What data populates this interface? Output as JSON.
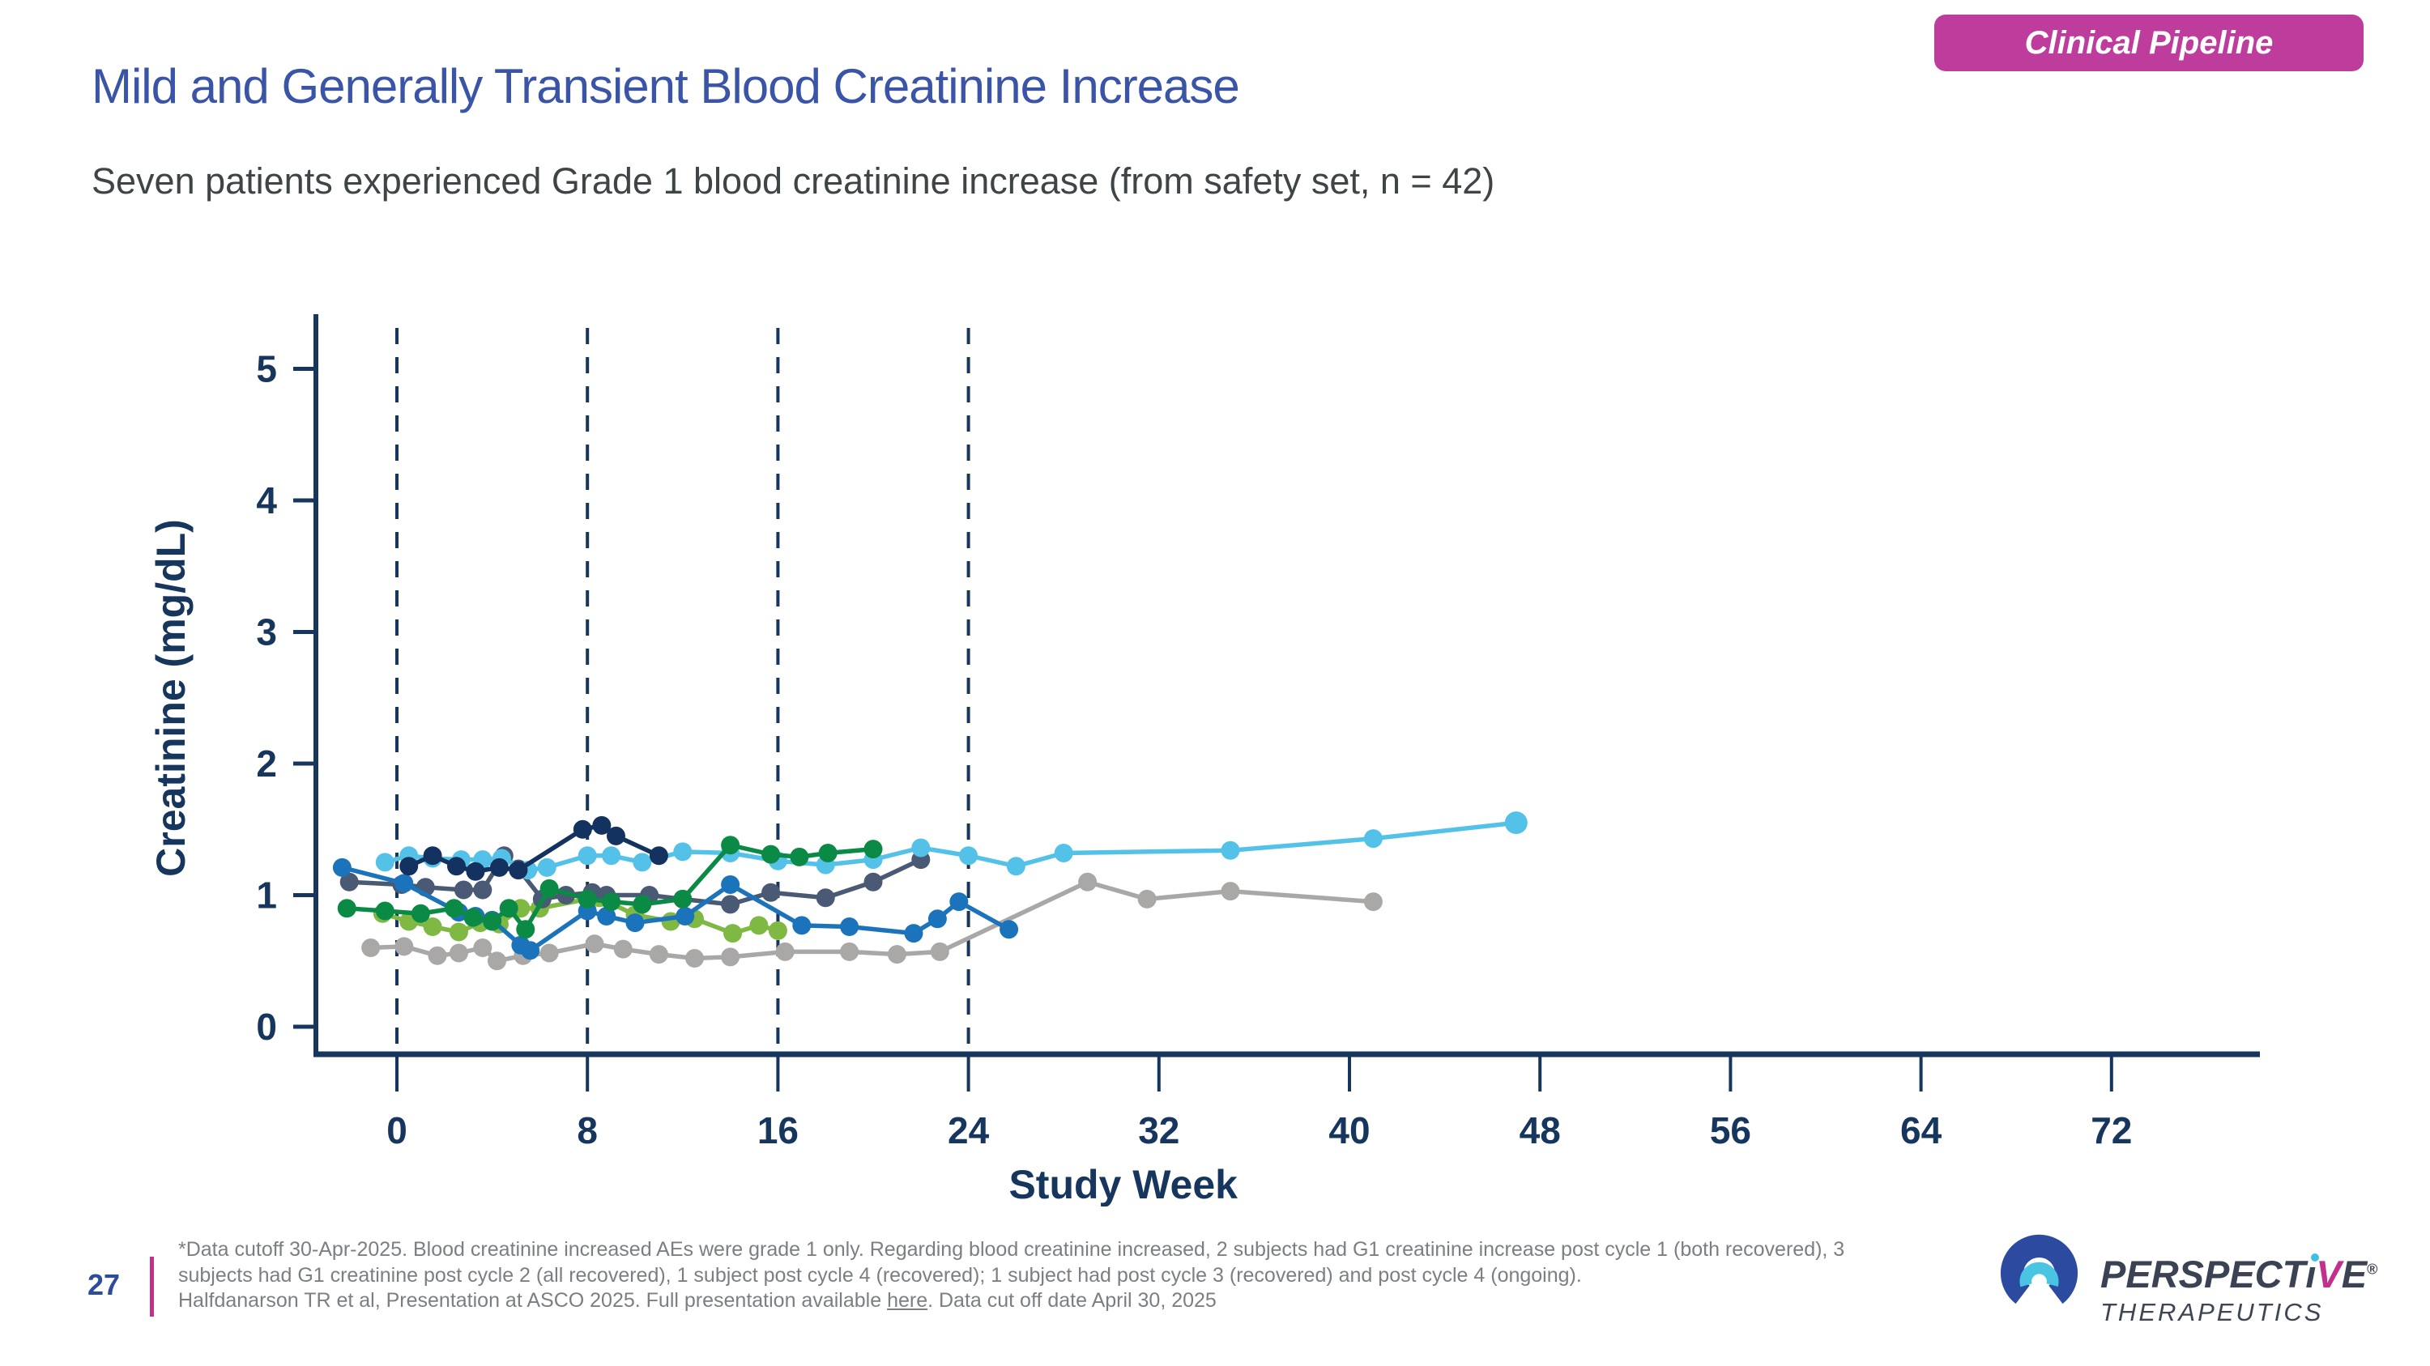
{
  "badge": {
    "label": "Clinical Pipeline"
  },
  "header": {
    "title": "Mild and Generally Transient Blood Creatinine Increase",
    "subtitle": "Seven patients experienced Grade 1 blood creatinine increase (from safety set, n = 42)"
  },
  "chart_data": {
    "type": "line",
    "title": "",
    "xlabel": "Study  Week",
    "ylabel": "Creatinine (mg/dL)",
    "x_ticks": [
      0,
      8,
      16,
      24,
      32,
      40,
      48,
      56,
      64,
      72
    ],
    "y_ticks": [
      0,
      1,
      2,
      3,
      4,
      5
    ],
    "xlim": [
      -3.4,
      78
    ],
    "ylim": [
      -0.2,
      5.4
    ],
    "guide_weeks": [
      0,
      8,
      16,
      24
    ],
    "axis_color": "#17365d",
    "legend": "none",
    "grid": "off",
    "series": [
      {
        "name": "patient-7-gray",
        "color": "#a9a8a7",
        "points": [
          [
            -1.1,
            0.6
          ],
          [
            0.3,
            0.61
          ],
          [
            1.7,
            0.54
          ],
          [
            2.6,
            0.56
          ],
          [
            3.6,
            0.6
          ],
          [
            4.2,
            0.5
          ],
          [
            5.3,
            0.54
          ],
          [
            6.4,
            0.56
          ],
          [
            8.3,
            0.63
          ],
          [
            9.5,
            0.59
          ],
          [
            11,
            0.55
          ],
          [
            12.5,
            0.52
          ],
          [
            14,
            0.53
          ],
          [
            16.3,
            0.57
          ],
          [
            19,
            0.57
          ],
          [
            21,
            0.55
          ],
          [
            22.8,
            0.57
          ],
          [
            29,
            1.1
          ],
          [
            31.5,
            0.97
          ],
          [
            35,
            1.03
          ],
          [
            41,
            0.95
          ]
        ]
      },
      {
        "name": "patient-6-lime",
        "color": "#7fb943",
        "points": [
          [
            -0.6,
            0.86
          ],
          [
            0.5,
            0.8
          ],
          [
            1.5,
            0.76
          ],
          [
            2.6,
            0.72
          ],
          [
            3.5,
            0.79
          ],
          [
            4.3,
            0.78
          ],
          [
            5.2,
            0.9
          ],
          [
            6,
            0.9
          ],
          [
            8,
            0.97
          ],
          [
            8.5,
            0.98
          ],
          [
            10,
            0.85
          ],
          [
            11.5,
            0.8
          ],
          [
            12.5,
            0.82
          ],
          [
            14.1,
            0.71
          ],
          [
            15.2,
            0.77
          ],
          [
            16,
            0.73
          ]
        ]
      },
      {
        "name": "patient-3-slate",
        "color": "#4a5a74",
        "points": [
          [
            -2,
            1.1
          ],
          [
            0.2,
            1.08
          ],
          [
            1.2,
            1.06
          ],
          [
            2.8,
            1.04
          ],
          [
            3.6,
            1.04
          ],
          [
            4.5,
            1.3
          ],
          [
            5.1,
            1.2
          ],
          [
            6.1,
            0.97
          ],
          [
            7.1,
            1.0
          ],
          [
            8.2,
            1.02
          ],
          [
            8.8,
            1.0
          ],
          [
            10.6,
            1.0
          ],
          [
            12,
            0.97
          ],
          [
            14,
            0.93
          ],
          [
            15.7,
            1.02
          ],
          [
            18,
            0.98
          ],
          [
            20,
            1.1
          ],
          [
            22,
            1.27
          ]
        ]
      },
      {
        "name": "patient-4-blue",
        "color": "#1b74bb",
        "points": [
          [
            -2.3,
            1.21
          ],
          [
            0.3,
            1.09
          ],
          [
            2.6,
            0.87
          ],
          [
            3.3,
            0.84
          ],
          [
            4,
            0.81
          ],
          [
            5.2,
            0.62
          ],
          [
            5.6,
            0.58
          ],
          [
            8,
            0.88
          ],
          [
            8.8,
            0.84
          ],
          [
            10,
            0.79
          ],
          [
            12.1,
            0.84
          ],
          [
            14,
            1.08
          ],
          [
            17,
            0.77
          ],
          [
            19,
            0.76
          ],
          [
            21.7,
            0.71
          ],
          [
            22.7,
            0.82
          ],
          [
            23.6,
            0.95
          ],
          [
            25.7,
            0.74
          ]
        ]
      },
      {
        "name": "patient-1-skyblue",
        "color": "#54c2e8",
        "points": [
          [
            -0.5,
            1.25
          ],
          [
            0.5,
            1.3
          ],
          [
            1.5,
            1.28
          ],
          [
            2.7,
            1.27
          ],
          [
            3.6,
            1.27
          ],
          [
            4.4,
            1.28
          ],
          [
            5.5,
            1.19
          ],
          [
            6.3,
            1.21
          ],
          [
            8,
            1.3
          ],
          [
            9,
            1.3
          ],
          [
            10.3,
            1.25
          ],
          [
            12,
            1.33
          ],
          [
            14,
            1.32
          ],
          [
            16,
            1.26
          ],
          [
            18,
            1.23
          ],
          [
            20,
            1.27
          ],
          [
            22,
            1.36
          ],
          [
            24,
            1.3
          ],
          [
            26,
            1.22
          ],
          [
            28,
            1.32
          ],
          [
            35,
            1.34
          ],
          [
            41,
            1.43
          ],
          [
            47,
            1.55
          ]
        ]
      },
      {
        "name": "patient-5-green",
        "color": "#0a8a45",
        "points": [
          [
            -2.1,
            0.9
          ],
          [
            -0.5,
            0.88
          ],
          [
            1,
            0.86
          ],
          [
            2.4,
            0.9
          ],
          [
            3.2,
            0.83
          ],
          [
            4,
            0.8
          ],
          [
            4.7,
            0.9
          ],
          [
            5.4,
            0.74
          ],
          [
            6.4,
            1.05
          ],
          [
            8,
            0.97
          ],
          [
            9,
            0.95
          ],
          [
            10.3,
            0.93
          ],
          [
            12,
            0.97
          ],
          [
            14,
            1.38
          ],
          [
            15.7,
            1.31
          ],
          [
            16.9,
            1.29
          ],
          [
            18.1,
            1.32
          ],
          [
            20,
            1.35
          ]
        ]
      },
      {
        "name": "patient-2-navy",
        "color": "#14325f",
        "points": [
          [
            0.5,
            1.22
          ],
          [
            1.5,
            1.3
          ],
          [
            2.5,
            1.22
          ],
          [
            3.3,
            1.18
          ],
          [
            4.3,
            1.21
          ],
          [
            5.1,
            1.19
          ],
          [
            7.8,
            1.5
          ],
          [
            8.6,
            1.53
          ],
          [
            9.2,
            1.45
          ],
          [
            11,
            1.3
          ]
        ]
      }
    ]
  },
  "footer": {
    "page_number": "27",
    "note_line1": "*Data cutoff 30-Apr-2025. Blood creatinine increased AEs were grade 1 only.  Regarding blood creatinine increased, 2 subjects had G1 creatinine increase post cycle 1 (both recovered), 3",
    "note_line2": "subjects had G1 creatinine post cycle 2 (all recovered), 1 subject post cycle 4 (recovered); 1 subject had post cycle 3 (recovered) and post cycle 4 (ongoing).",
    "line3_pre": "Halfdanarson TR et al, Presentation at ASCO 2025. Full presentation available ",
    "line3_link": "here",
    "line3_post": ". Data cut off date April 30, 2025"
  },
  "logo": {
    "word_part1": "PERSPECT",
    "word_i": "ı",
    "word_v": "V",
    "word_part2": "E",
    "registered": "®",
    "subtext": "THERAPEUTICS",
    "arch_outer_color": "#2b4aa0",
    "arch_inner_color": "#49c5e3"
  }
}
